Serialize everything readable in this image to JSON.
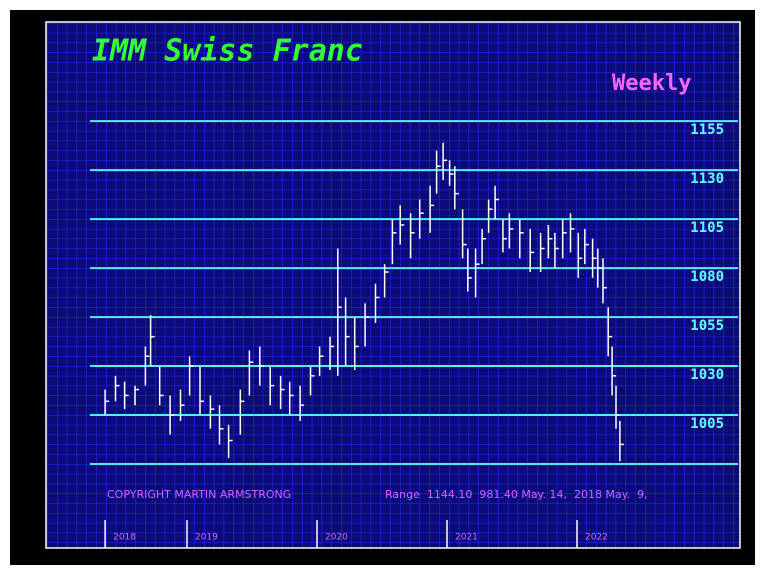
{
  "chart_data": {
    "type": "ohlc",
    "title": "IMM Swiss Franc",
    "subtitle": "Weekly",
    "footer": "COPYRIGHT MARTIN ARMSTRONG",
    "range_note": "Range  1144.10  981.40 May. 14,  2018 May.  9,",
    "color": "#ffffff",
    "x": [
      2018.37,
      2018.45,
      2018.52,
      2018.6,
      2018.68,
      2018.72,
      2018.79,
      2018.87,
      2018.95,
      2019.02,
      2019.1,
      2019.18,
      2019.25,
      2019.32,
      2019.41,
      2019.48,
      2019.56,
      2019.64,
      2019.72,
      2019.79,
      2019.87,
      2019.95,
      2020.02,
      2020.1,
      2020.16,
      2020.22,
      2020.29,
      2020.37,
      2020.45,
      2020.52,
      2020.58,
      2020.64,
      2020.72,
      2020.79,
      2020.87,
      2020.92,
      2020.97,
      2021.02,
      2021.06,
      2021.12,
      2021.16,
      2021.22,
      2021.27,
      2021.32,
      2021.37,
      2021.43,
      2021.48,
      2021.56,
      2021.64,
      2021.72,
      2021.78,
      2021.83,
      2021.89,
      2021.95,
      2022.01,
      2022.06,
      2022.12,
      2022.16,
      2022.2,
      2022.24,
      2022.27,
      2022.3,
      2022.33
    ],
    "high": [
      1018,
      1025,
      1022,
      1020,
      1040,
      1056,
      1030,
      1015,
      1018,
      1035,
      1030,
      1015,
      1010,
      1000,
      1018,
      1038,
      1040,
      1030,
      1025,
      1022,
      1020,
      1030,
      1040,
      1045,
      1090,
      1065,
      1055,
      1062,
      1072,
      1082,
      1105,
      1112,
      1108,
      1115,
      1122,
      1140,
      1144,
      1135,
      1132,
      1110,
      1090,
      1090,
      1100,
      1115,
      1122,
      1105,
      1108,
      1105,
      1100,
      1098,
      1102,
      1098,
      1105,
      1108,
      1098,
      1100,
      1095,
      1090,
      1085,
      1060,
      1040,
      1020,
      1002
    ],
    "low": [
      1005,
      1012,
      1008,
      1010,
      1020,
      1030,
      1010,
      995,
      1002,
      1015,
      1005,
      998,
      990,
      983,
      995,
      1015,
      1020,
      1010,
      1008,
      1005,
      1002,
      1015,
      1025,
      1028,
      1025,
      1030,
      1028,
      1040,
      1052,
      1065,
      1082,
      1092,
      1085,
      1095,
      1098,
      1118,
      1125,
      1122,
      1110,
      1085,
      1068,
      1065,
      1082,
      1098,
      1105,
      1088,
      1090,
      1085,
      1078,
      1078,
      1085,
      1080,
      1085,
      1088,
      1075,
      1082,
      1075,
      1070,
      1062,
      1035,
      1015,
      998,
      981.4
    ],
    "close": [
      1012,
      1020,
      1015,
      1018,
      1035,
      1045,
      1015,
      1005,
      1010,
      1030,
      1012,
      1008,
      998,
      992,
      1012,
      1032,
      1030,
      1020,
      1018,
      1015,
      1010,
      1025,
      1035,
      1040,
      1060,
      1045,
      1040,
      1055,
      1065,
      1078,
      1098,
      1102,
      1098,
      1108,
      1112,
      1132,
      1135,
      1128,
      1118,
      1092,
      1075,
      1082,
      1095,
      1110,
      1115,
      1095,
      1100,
      1098,
      1088,
      1090,
      1095,
      1090,
      1098,
      1100,
      1085,
      1092,
      1085,
      1080,
      1070,
      1045,
      1025,
      1005,
      990
    ],
    "xlim": [
      2018,
      2023
    ],
    "xticks": [
      {
        "value": 2018.37,
        "label": "2018"
      },
      2019,
      2020,
      2021,
      2022
    ],
    "ylim": [
      980,
      1200
    ],
    "yticks": [
      1005,
      1030,
      1055,
      1080,
      1105,
      1130,
      1155
    ]
  }
}
